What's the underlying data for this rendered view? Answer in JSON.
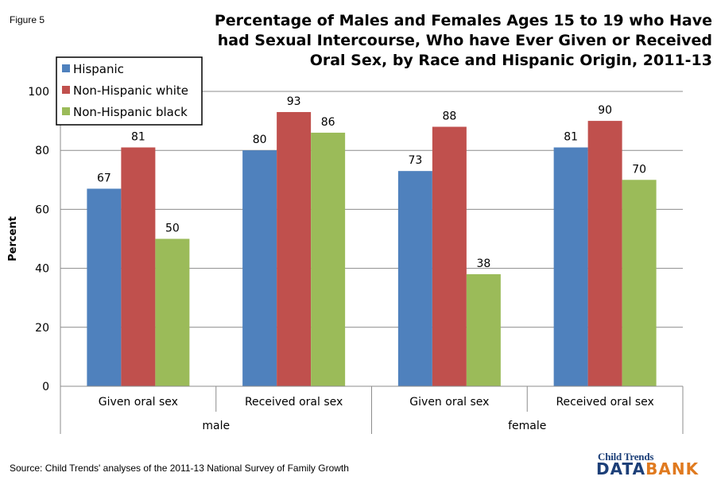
{
  "figure_label": "Figure 5",
  "source": "Source: Child Trends' analyses of the 2011-13 National Survey of Family Growth",
  "logo": {
    "top": "Child Trends",
    "data": "DATA",
    "bank": "BANK"
  },
  "chart_data": {
    "type": "bar",
    "title_lines": [
      "Percentage of Males and Females Ages 15 to 19  who Have",
      "had Sexual Intercourse, Who have Ever Given  or Received",
      "Oral Sex, by Race and Hispanic Origin, 2011-13"
    ],
    "ylabel": "Percent",
    "ylim": [
      0,
      100
    ],
    "yticks": [
      0,
      20,
      40,
      60,
      80,
      100
    ],
    "grid": true,
    "legend_position": "top-left",
    "categories": [
      "Given oral sex",
      "Received oral sex",
      "Given oral sex",
      "Received oral sex"
    ],
    "groups": [
      {
        "label": "male",
        "span": 2
      },
      {
        "label": "female",
        "span": 2
      }
    ],
    "series": [
      {
        "name": "Hispanic",
        "color": "#4f81bd",
        "values": [
          67,
          80,
          73,
          81
        ],
        "labels": [
          "67",
          "80",
          "73",
          "81"
        ]
      },
      {
        "name": "Non-Hispanic white",
        "color": "#c0504d",
        "values": [
          81,
          93,
          88,
          90
        ],
        "labels": [
          "81",
          "93",
          "88",
          "90"
        ]
      },
      {
        "name": "Non-Hispanic black",
        "color": "#9bbb59",
        "values": [
          50,
          86,
          38,
          70
        ],
        "labels": [
          "50",
          "86",
          "38",
          "70"
        ]
      }
    ]
  }
}
